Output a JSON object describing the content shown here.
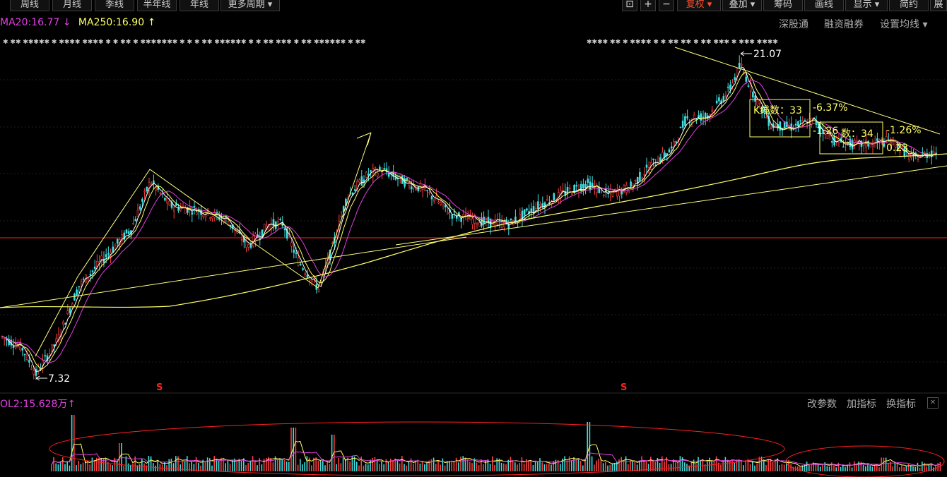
{
  "toolbar": {
    "buttons": [
      "周线",
      "月线",
      "季线",
      "半年线",
      "年线",
      "更多周期 ▾"
    ],
    "right_buttons": [
      "复权 ▾",
      "叠加 ▾",
      "筹码",
      "画线",
      "显示 ▾",
      "简约",
      "展"
    ],
    "icons": [
      "⊡",
      "+",
      "−"
    ]
  },
  "indicators": {
    "ma20": "MA20:16.77",
    "ma20_arrow": "↓",
    "ma250": "MA250:16.90",
    "ma250_arrow": "↑"
  },
  "top_links": [
    "深股通",
    "融资融券",
    "设置均线 ▾"
  ],
  "annotations": {
    "high": "21.07",
    "low": "7.32",
    "kline_count_1": "K线数：33",
    "pct_1": "-6.37%",
    "pct_2": "-1.26",
    "kline_count_2": "数：34",
    "pct_3": "-1.26%",
    "val_4": "0.23",
    "s_marker": "S"
  },
  "volume": {
    "label": "OL2:15.628万",
    "arrow": "↑",
    "links": [
      "改参数",
      "加指标",
      "换指标"
    ]
  },
  "colors": {
    "up": "#ff4040",
    "down": "#40e0e0",
    "ma_yellow": "#ffff66",
    "ma_magenta": "#e040e0",
    "ma_white": "#ffffff",
    "trend": "#ffff80",
    "redline": "#ff2020"
  },
  "chart_data": {
    "type": "line",
    "title": "",
    "high": 21.07,
    "low": 7.32,
    "price_path": [
      [
        0,
        9.0
      ],
      [
        30,
        8.5
      ],
      [
        50,
        7.32
      ],
      [
        80,
        8.8
      ],
      [
        110,
        11.2
      ],
      [
        150,
        12.6
      ],
      [
        185,
        13.8
      ],
      [
        212,
        15.9
      ],
      [
        240,
        14.8
      ],
      [
        280,
        14.6
      ],
      [
        320,
        14.2
      ],
      [
        350,
        13.0
      ],
      [
        380,
        14.0
      ],
      [
        400,
        14.0
      ],
      [
        420,
        12.4
      ],
      [
        450,
        11.1
      ],
      [
        470,
        13.0
      ],
      [
        490,
        15.2
      ],
      [
        520,
        16.2
      ],
      [
        540,
        16.4
      ],
      [
        570,
        15.9
      ],
      [
        600,
        15.5
      ],
      [
        640,
        14.4
      ],
      [
        680,
        14.1
      ],
      [
        720,
        14.0
      ],
      [
        760,
        14.8
      ],
      [
        800,
        15.4
      ],
      [
        830,
        15.8
      ],
      [
        860,
        15.3
      ],
      [
        890,
        15.6
      ],
      [
        920,
        16.6
      ],
      [
        950,
        17.3
      ],
      [
        970,
        18.7
      ],
      [
        1000,
        18.8
      ],
      [
        1030,
        19.9
      ],
      [
        1047,
        21.07
      ],
      [
        1065,
        19.8
      ],
      [
        1090,
        18.4
      ],
      [
        1120,
        18.3
      ],
      [
        1150,
        18.6
      ],
      [
        1180,
        17.7
      ],
      [
        1210,
        17.5
      ],
      [
        1240,
        17.6
      ],
      [
        1260,
        17.7
      ],
      [
        1290,
        16.9
      ],
      [
        1320,
        17.2
      ]
    ]
  }
}
